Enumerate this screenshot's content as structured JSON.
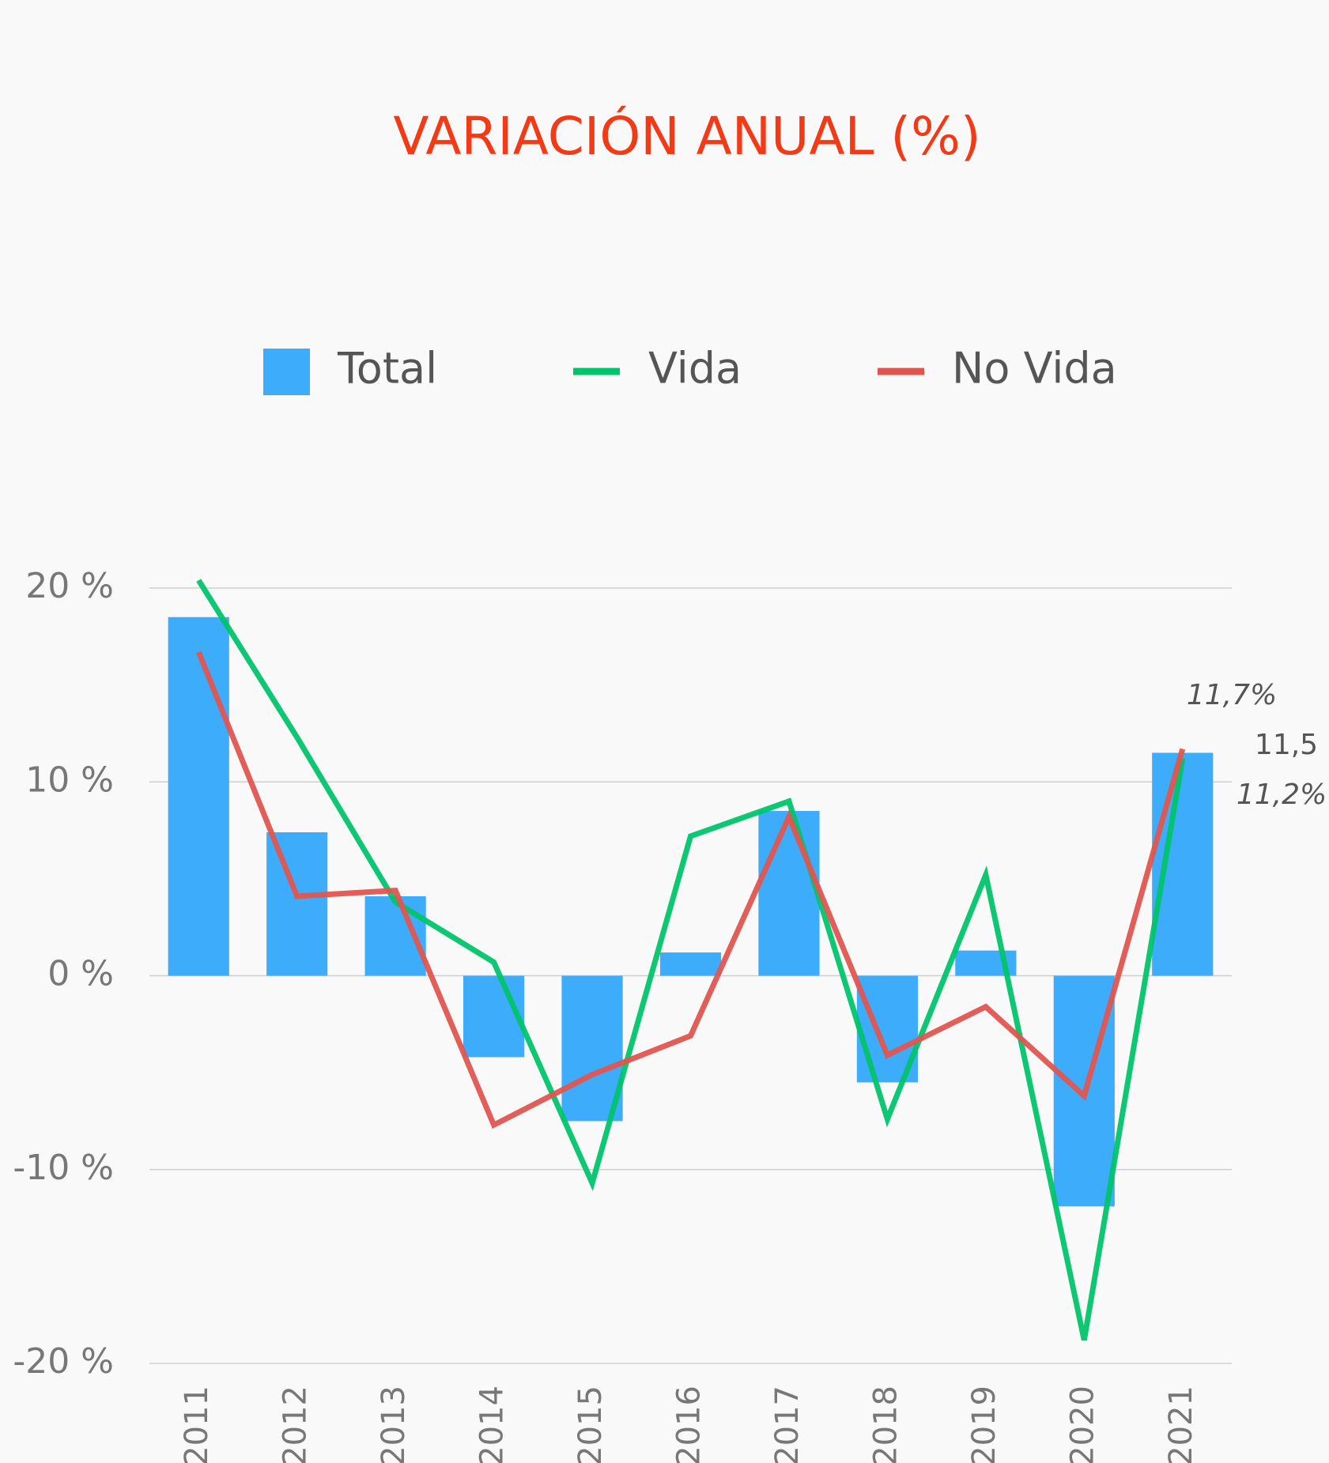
{
  "chart_data": {
    "type": "bar",
    "title": "VARIACIÓN ANUAL (%)",
    "categories": [
      "2011",
      "2012",
      "2013",
      "2014",
      "2015",
      "2016",
      "2017",
      "2018",
      "2019",
      "2020",
      "2021"
    ],
    "series": [
      {
        "name": "Total",
        "type": "bar",
        "color": "#3dacfb",
        "values": [
          18.5,
          7.4,
          4.1,
          -4.2,
          -7.5,
          1.2,
          8.5,
          -5.5,
          1.3,
          -11.9,
          11.5
        ],
        "value_labels": [
          null,
          null,
          null,
          null,
          null,
          null,
          null,
          null,
          null,
          null,
          "11,5"
        ]
      },
      {
        "name": "Vida",
        "type": "line",
        "color": "#00c46a",
        "values": [
          20.4,
          12.3,
          3.8,
          0.7,
          -10.7,
          7.2,
          9.0,
          -7.4,
          5.2,
          -18.8,
          11.2
        ],
        "value_labels": [
          null,
          null,
          null,
          null,
          null,
          null,
          null,
          null,
          null,
          null,
          "11,2%"
        ]
      },
      {
        "name": "No Vida",
        "type": "line",
        "color": "#e05550",
        "values": [
          16.7,
          4.1,
          4.4,
          -7.7,
          -5.1,
          -3.1,
          8.2,
          -4.1,
          -1.6,
          -6.2,
          11.7
        ],
        "value_labels": [
          null,
          null,
          null,
          null,
          null,
          null,
          null,
          null,
          null,
          null,
          "11,7%"
        ]
      }
    ],
    "ylim": [
      -20,
      20
    ],
    "yticks": [
      {
        "value": -20,
        "label": "-20 %"
      },
      {
        "value": -10,
        "label": "-10 %"
      },
      {
        "value": 0,
        "label": "0 %"
      },
      {
        "value": 10,
        "label": "10 %"
      },
      {
        "value": 20,
        "label": "20 %"
      }
    ],
    "grid": true,
    "legend": "top"
  }
}
